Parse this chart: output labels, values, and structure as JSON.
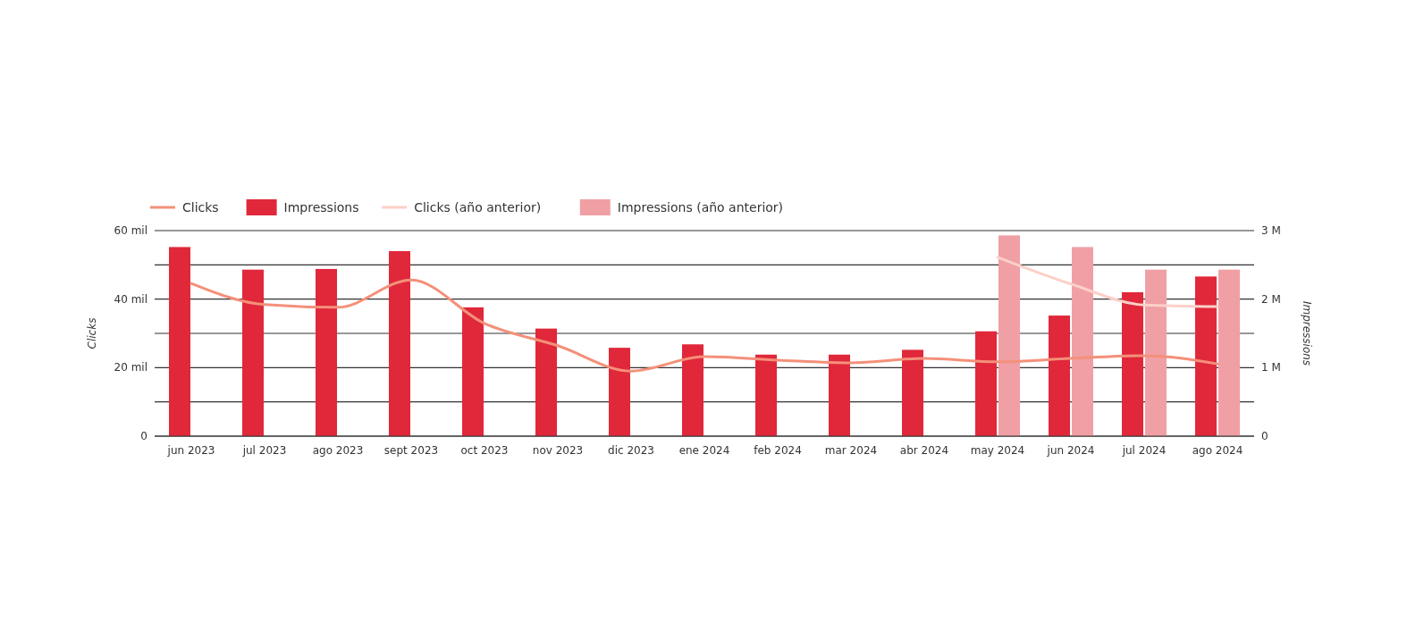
{
  "chart_data": {
    "type": "bar",
    "categories": [
      "jun 2023",
      "jul 2023",
      "ago 2023",
      "sept 2023",
      "oct 2023",
      "nov 2023",
      "dic 2023",
      "ene 2024",
      "feb 2024",
      "mar 2024",
      "abr 2024",
      "may 2024",
      "jun 2024",
      "jul 2024",
      "ago 2024"
    ],
    "series": [
      {
        "name": "Clicks",
        "type": "line",
        "color": "#f4907a",
        "values": [
          44.6,
          38.4,
          37.6,
          45.6,
          32.9,
          26.4,
          19.0,
          23.2,
          22.2,
          21.4,
          22.7,
          21.7,
          22.7,
          23.5,
          21.1
        ]
      },
      {
        "name": "Impressions",
        "axis": "y2",
        "color": "#e0283a",
        "values": [
          2.76,
          2.43,
          2.44,
          2.7,
          1.88,
          1.57,
          1.29,
          1.34,
          1.19,
          1.19,
          1.26,
          1.53,
          1.76,
          2.1,
          2.33
        ]
      },
      {
        "name": "Clicks (año anterior)",
        "type": "line",
        "color": "#fcd0c8",
        "values": [
          null,
          null,
          null,
          null,
          null,
          null,
          null,
          null,
          null,
          null,
          null,
          52.2,
          44.4,
          38.3,
          37.8
        ]
      },
      {
        "name": "Impressions (año anterior)",
        "axis": "y2",
        "color": "#f0a0a4",
        "values": [
          null,
          null,
          null,
          null,
          null,
          null,
          null,
          null,
          null,
          null,
          null,
          2.93,
          2.76,
          2.43,
          2.43
        ]
      }
    ],
    "ylabel": "Clicks",
    "y2label": "Impressions",
    "ylim": [
      0,
      60
    ],
    "yticks": [
      0,
      {
        "value": 10,
        "label": null
      },
      {
        "value": 20,
        "label": "20 mil"
      },
      {
        "value": 30,
        "label": null
      },
      {
        "value": 40,
        "label": "40 mil"
      },
      {
        "value": 50,
        "label": null
      },
      {
        "value": 60,
        "label": "60 mil"
      }
    ],
    "y2lim": [
      0,
      3
    ],
    "y2ticks": [
      0,
      {
        "value": 1,
        "label": "1 M"
      },
      {
        "value": 2,
        "label": "2 M"
      },
      {
        "value": 3,
        "label": "3 M"
      }
    ],
    "grid": "y",
    "legend": "top left",
    "marker": "none",
    "line_style": "solid"
  }
}
